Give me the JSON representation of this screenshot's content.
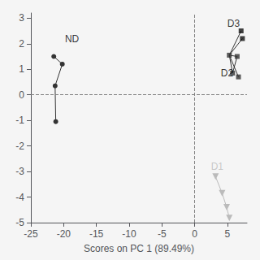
{
  "chart_data": {
    "type": "scatter",
    "xlabel": "Scores on PC 1 (89.49%)",
    "xlim": [
      -25,
      8
    ],
    "ylim": [
      -5,
      3.2
    ],
    "xticks": [
      -25,
      -20,
      -15,
      -10,
      -5,
      0,
      5
    ],
    "yticks": [
      -5,
      -4,
      -3,
      -2,
      -1,
      0,
      1,
      2,
      3
    ],
    "grid": false,
    "background": "#f5f5f5",
    "reference_lines": {
      "x": [
        0
      ],
      "y": [
        0
      ],
      "color": "gray",
      "line_style": "dashed"
    },
    "series": [
      {
        "type": "line",
        "marker": "circle",
        "color": "#333333",
        "x": [
          -21.5,
          -20.2,
          -21.3,
          -21.2
        ],
        "y": [
          1.5,
          1.2,
          0.35,
          -1.05
        ]
      },
      {
        "type": "segments",
        "color": "#333333",
        "segments": [
          [
            [
              5.3,
              1.55
            ],
            [
              5.8,
              0.85
            ]
          ],
          [
            [
              5.3,
              1.55
            ],
            [
              5.3,
              1.55
            ]
          ],
          [
            [
              5.3,
              1.55
            ],
            [
              6.5,
              1.5
            ]
          ],
          [
            [
              5.3,
              1.55
            ],
            [
              6.7,
              0.7
            ]
          ],
          [
            [
              5.3,
              1.55
            ],
            [
              7.1,
              2.5
            ]
          ],
          [
            [
              5.3,
              1.55
            ],
            [
              7.3,
              2.2
            ]
          ],
          [
            [
              5.8,
              0.85
            ],
            [
              6.5,
              1.5
            ]
          ]
        ]
      },
      {
        "type": "scatter",
        "marker": "square",
        "color": "#333333",
        "x": [
          5.8,
          5.3,
          6.5,
          6.7
        ],
        "y": [
          0.85,
          1.55,
          1.5,
          0.7
        ]
      },
      {
        "type": "scatter",
        "marker": "square",
        "color": "#111111",
        "x": [
          7.1,
          7.3
        ],
        "y": [
          2.5,
          2.2
        ]
      },
      {
        "type": "line",
        "marker": "triangle-down",
        "color": "#bbbbbb",
        "x": [
          3.2,
          4.2,
          4.9,
          5.3
        ],
        "y": [
          -3.2,
          -3.85,
          -4.4,
          -4.82
        ]
      }
    ],
    "annotations": [
      {
        "text": "ND",
        "x": -19.8,
        "y": 2.0,
        "color": "black"
      },
      {
        "text": "D2",
        "x": 4.0,
        "y": 0.65,
        "color": "black"
      },
      {
        "text": "D3",
        "x": 5.0,
        "y": 2.6,
        "color": "black"
      },
      {
        "text": "D1",
        "x": 2.5,
        "y": -3.0,
        "color": "#bbbbbb"
      }
    ]
  }
}
